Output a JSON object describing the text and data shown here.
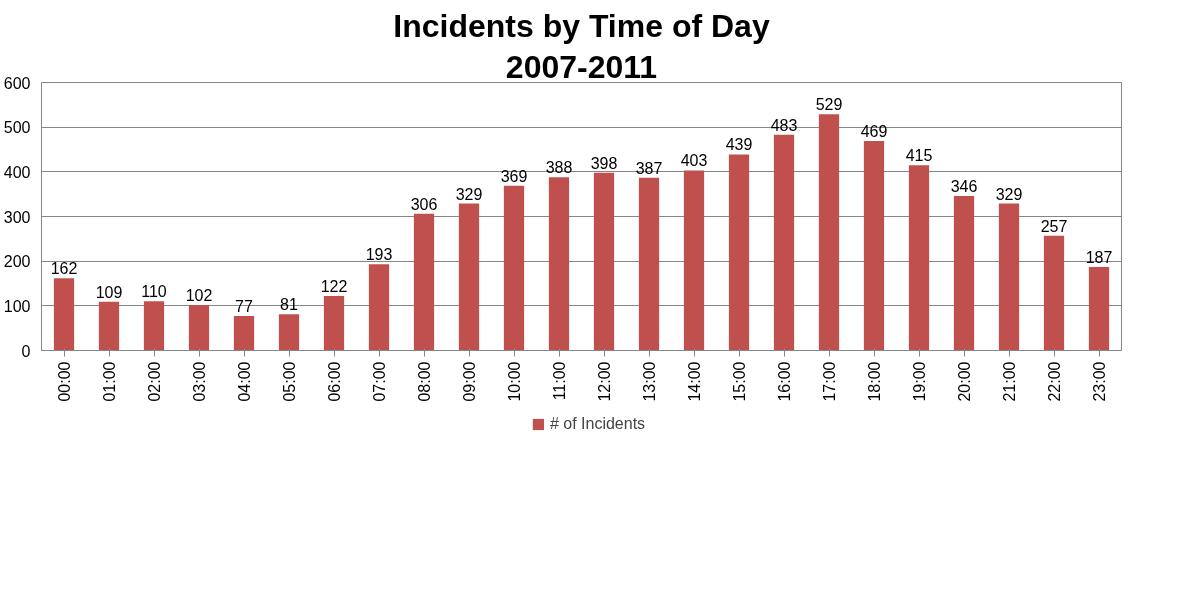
{
  "chart_data": {
    "type": "bar",
    "title": "Incidents by Time of Day",
    "subtitle": "2007-2011",
    "categories": [
      "00:00",
      "01:00",
      "02:00",
      "03:00",
      "04:00",
      "05:00",
      "06:00",
      "07:00",
      "08:00",
      "09:00",
      "10:00",
      "11:00",
      "12:00",
      "13:00",
      "14:00",
      "15:00",
      "16:00",
      "17:00",
      "18:00",
      "19:00",
      "20:00",
      "21:00",
      "22:00",
      "23:00"
    ],
    "series": [
      {
        "name": "# of Incidents",
        "color": "#c0504d",
        "values": [
          162,
          109,
          110,
          102,
          77,
          81,
          122,
          193,
          306,
          329,
          369,
          388,
          398,
          387,
          403,
          439,
          483,
          529,
          469,
          415,
          346,
          329,
          257,
          187
        ]
      }
    ],
    "ylim": [
      0,
      600
    ],
    "yticks": [
      0,
      100,
      200,
      300,
      400,
      500,
      600
    ],
    "grid": "y",
    "legend": "bottom",
    "data_labels": true
  }
}
